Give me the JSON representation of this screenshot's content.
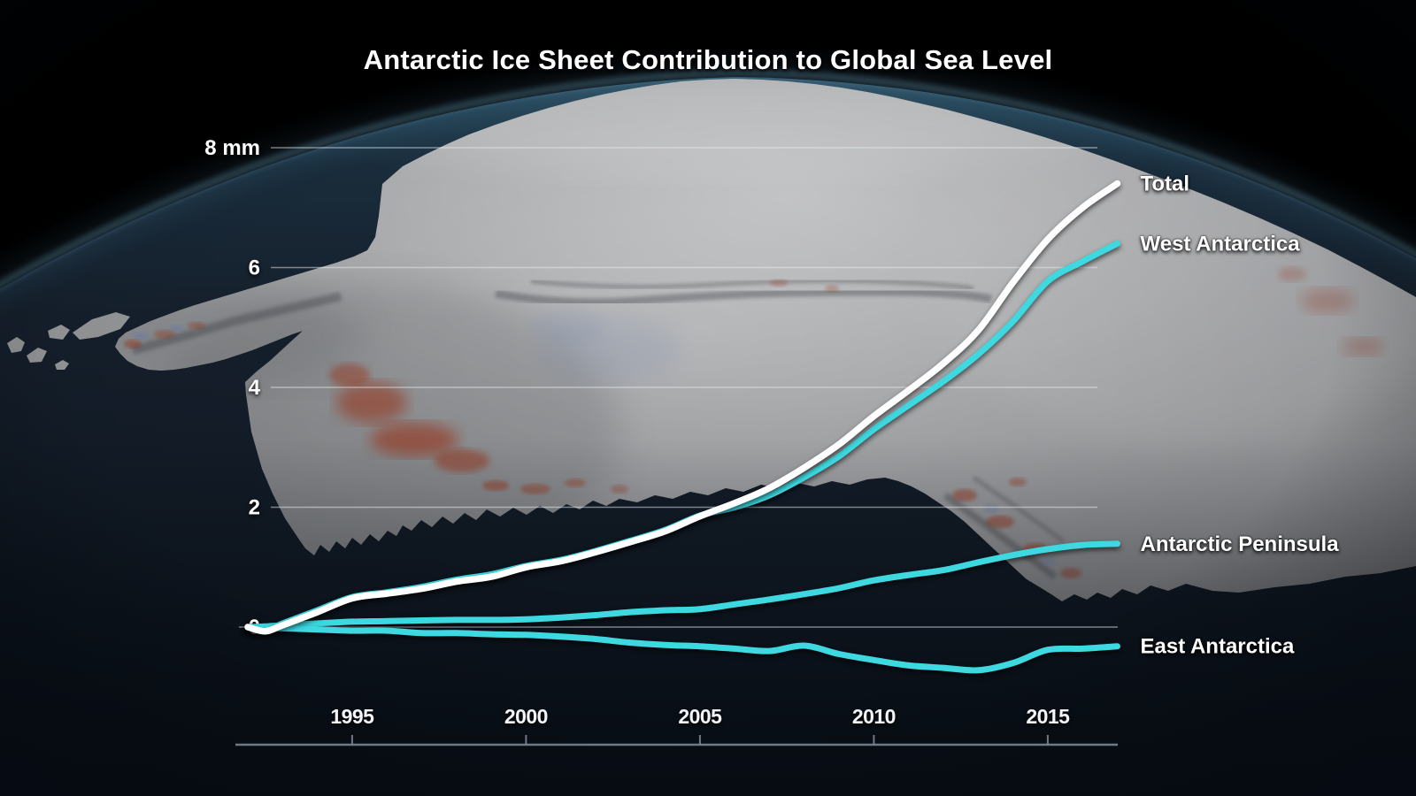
{
  "title": "Antarctic Ice Sheet Contribution to Global Sea Level",
  "colors": {
    "total": "#ffffff",
    "regional": "#3ed8e0",
    "gridline": "#e8edf2",
    "zero_gridline": "#97a1ab",
    "axis": "#7b8591",
    "sky": "#000000",
    "ocean_deep": "#0c121b",
    "horizon_glow": "#86c3e6",
    "continent": "#aeafb1",
    "warm_anomaly": "#9c3a22",
    "cool_anomaly": "#6d84b4"
  },
  "chart_data": {
    "type": "line",
    "title": "Antarctic Ice Sheet Contribution to Global Sea Level",
    "xlabel": "",
    "ylabel": "mm",
    "xlim": [
      1992,
      2017
    ],
    "ylim": [
      -1,
      8.5
    ],
    "grid": "horizontal",
    "legend_position": "right-of-line-end",
    "yticks": [
      {
        "value": 0,
        "label": "0"
      },
      {
        "value": 2,
        "label": "2"
      },
      {
        "value": 4,
        "label": "4"
      },
      {
        "value": 6,
        "label": "6"
      },
      {
        "value": 8,
        "label": "8 mm"
      }
    ],
    "xticks": [
      1995,
      2000,
      2005,
      2010,
      2015
    ],
    "x": [
      1992,
      1992.5,
      1993,
      1994,
      1995,
      1996,
      1997,
      1998,
      1999,
      2000,
      2001,
      2002,
      2003,
      2004,
      2005,
      2006,
      2007,
      2008,
      2009,
      2010,
      2011,
      2012,
      2013,
      2014,
      2015,
      2016,
      2017
    ],
    "series": [
      {
        "name": "West Antarctica",
        "color_key": "regional",
        "values": [
          0,
          -0.05,
          0.06,
          0.28,
          0.5,
          0.58,
          0.67,
          0.79,
          0.88,
          1.02,
          1.12,
          1.27,
          1.44,
          1.62,
          1.86,
          2.0,
          2.2,
          2.5,
          2.85,
          3.3,
          3.7,
          4.1,
          4.55,
          5.1,
          5.77,
          6.1,
          6.4
        ]
      },
      {
        "name": "Antarctic Peninsula",
        "color_key": "regional",
        "values": [
          0,
          0.01,
          0.03,
          0.06,
          0.09,
          0.1,
          0.11,
          0.12,
          0.12,
          0.13,
          0.16,
          0.2,
          0.25,
          0.28,
          0.3,
          0.38,
          0.46,
          0.55,
          0.65,
          0.78,
          0.87,
          0.95,
          1.08,
          1.2,
          1.3,
          1.37,
          1.39
        ]
      },
      {
        "name": "East Antarctica",
        "color_key": "regional",
        "values": [
          0,
          -0.01,
          -0.02,
          -0.04,
          -0.06,
          -0.06,
          -0.1,
          -0.1,
          -0.12,
          -0.13,
          -0.16,
          -0.2,
          -0.26,
          -0.3,
          -0.32,
          -0.36,
          -0.4,
          -0.31,
          -0.45,
          -0.55,
          -0.64,
          -0.68,
          -0.72,
          -0.6,
          -0.38,
          -0.36,
          -0.32
        ]
      },
      {
        "name": "Total",
        "color_key": "total",
        "values": [
          0,
          -0.07,
          0.03,
          0.25,
          0.48,
          0.56,
          0.64,
          0.76,
          0.84,
          1.0,
          1.1,
          1.25,
          1.42,
          1.6,
          1.85,
          2.07,
          2.32,
          2.66,
          3.05,
          3.52,
          3.95,
          4.4,
          4.95,
          5.75,
          6.47,
          7.0,
          7.4
        ]
      }
    ]
  }
}
